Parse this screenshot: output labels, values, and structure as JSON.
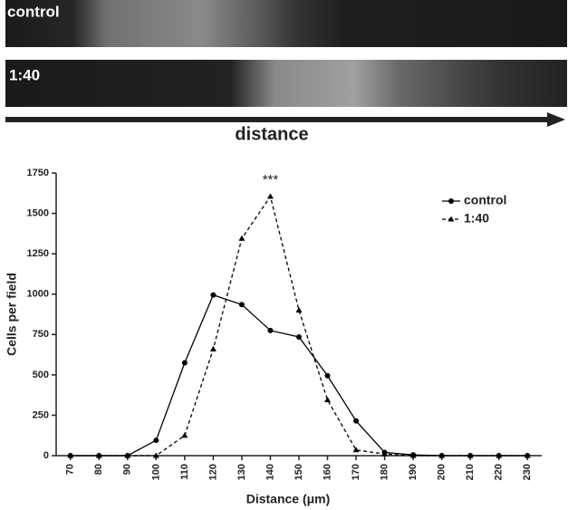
{
  "panels": [
    {
      "label": "control"
    },
    {
      "label": "1:40"
    }
  ],
  "arrow_label": "distance",
  "chart_data": {
    "type": "line",
    "y_label": "Cells per field",
    "x_label": "Distance (μm)",
    "annotation": "***",
    "x": [
      70,
      80,
      90,
      100,
      110,
      120,
      130,
      140,
      150,
      160,
      170,
      180,
      190,
      200,
      210,
      220,
      230
    ],
    "series": [
      {
        "name": "control",
        "color": "#000000",
        "marker": "circle",
        "dash": false,
        "values": [
          0,
          0,
          0,
          95,
          575,
          995,
          935,
          775,
          735,
          495,
          215,
          20,
          5,
          0,
          0,
          0,
          0
        ]
      },
      {
        "name": "1:40",
        "color": "#000000",
        "marker": "triangle",
        "dash": true,
        "values": [
          0,
          0,
          0,
          0,
          125,
          660,
          1345,
          1605,
          900,
          345,
          35,
          10,
          0,
          0,
          0,
          0,
          0
        ]
      }
    ],
    "xlim": [
      65,
      235
    ],
    "ylim": [
      0,
      1750
    ],
    "xticks": [
      70,
      80,
      90,
      100,
      110,
      120,
      130,
      140,
      150,
      160,
      170,
      180,
      190,
      200,
      210,
      220,
      230
    ],
    "yticks": [
      0,
      250,
      500,
      750,
      1000,
      1250,
      1500,
      {
        "value": 1750,
        "label": "1750"
      }
    ],
    "grid": false,
    "legend": "top-right"
  }
}
